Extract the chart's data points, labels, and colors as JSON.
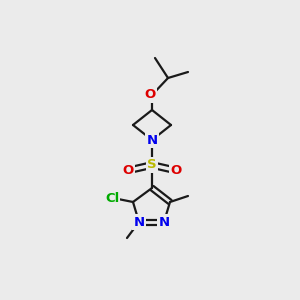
{
  "bg_color": "#ebebeb",
  "bond_color": "#1a1a1a",
  "bond_width": 1.6,
  "atom_colors": {
    "N": "#0000ee",
    "O": "#dd0000",
    "S": "#bbbb00",
    "Cl": "#00aa00",
    "C": "#1a1a1a"
  },
  "font_size_atom": 9.5,
  "font_size_small": 8.0
}
